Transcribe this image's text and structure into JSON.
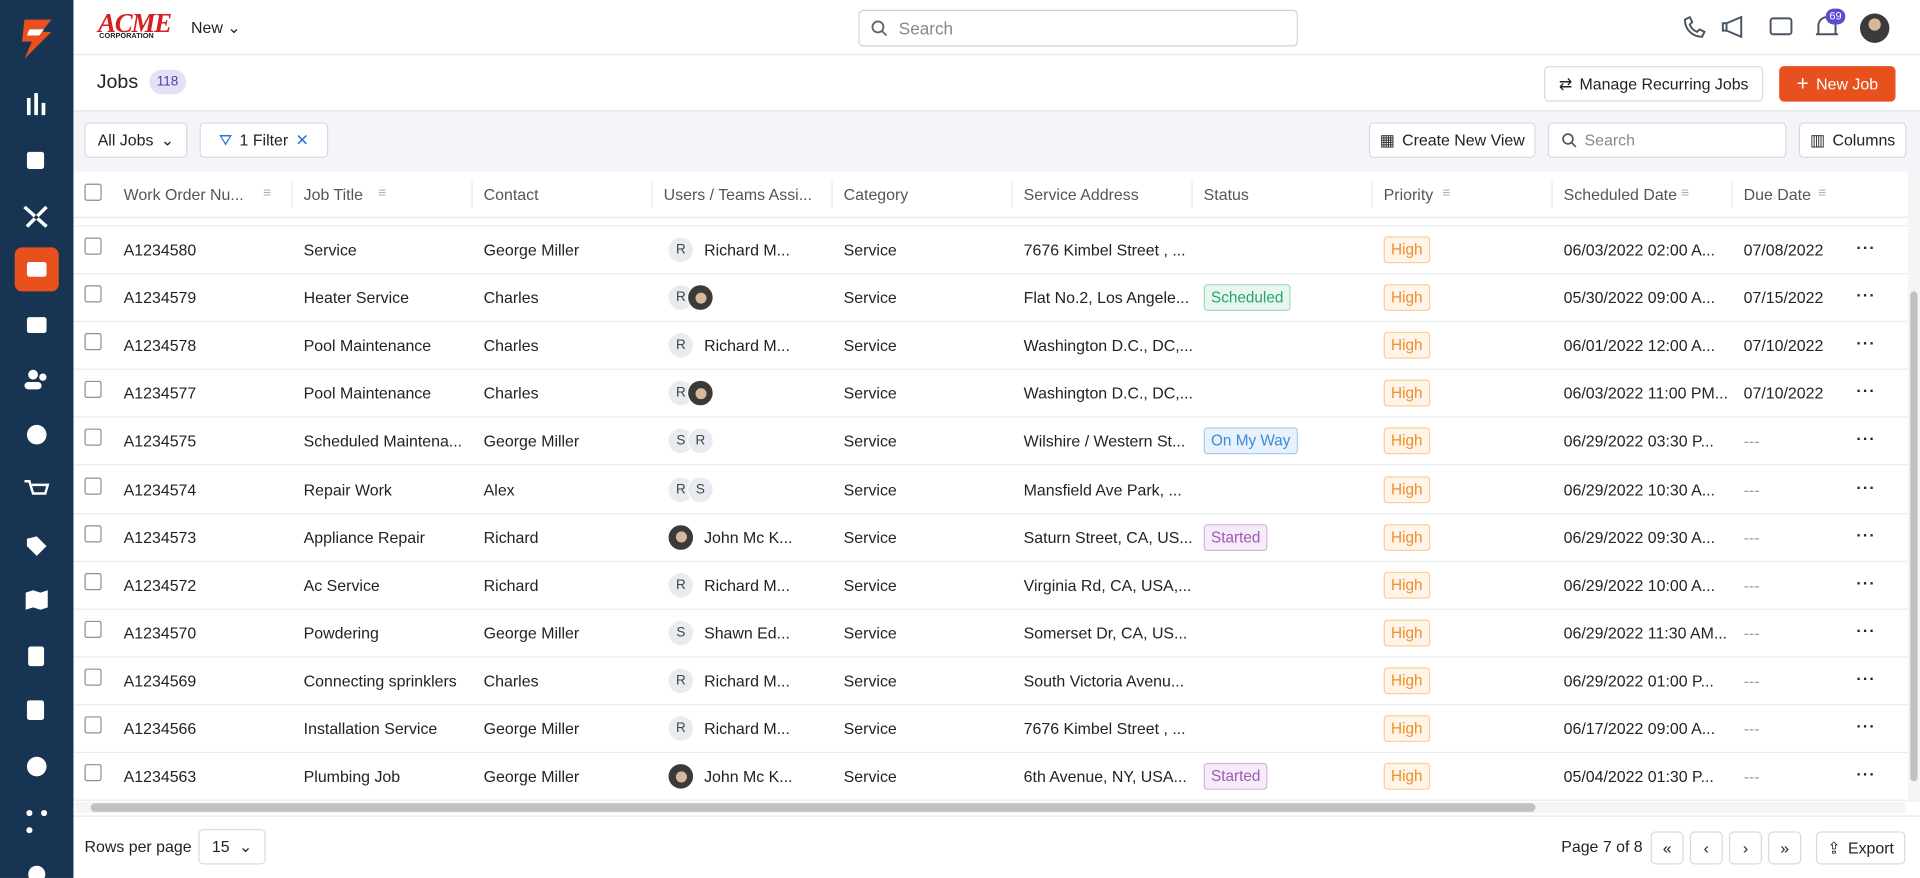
{
  "header": {
    "logo": "ACME",
    "logo_sub": "CORPORATION",
    "new_menu": "New",
    "search_placeholder": "Search",
    "notification_count": "69"
  },
  "page": {
    "title": "Jobs",
    "count": "118",
    "manage_button": "Manage Recurring Jobs",
    "new_button": "New Job"
  },
  "toolbar": {
    "view": "All Jobs",
    "filter": "1 Filter",
    "create_view": "Create New View",
    "search_placeholder": "Search",
    "columns": "Columns"
  },
  "table": {
    "columns": [
      "Work Order Nu...",
      "Job Title",
      "Contact",
      "Users / Teams Assi...",
      "Category",
      "Service Address",
      "Status",
      "Priority",
      "Scheduled Date",
      "Due Date"
    ],
    "rows": [
      {
        "id": "A1234580",
        "title": "Service",
        "contact": "George Miller",
        "initials": [
          "R"
        ],
        "assignee": "Richard M...",
        "category": "Service",
        "address": "7676 Kimbel Street , ...",
        "priority": "High",
        "scheduled": "06/03/2022 02:00 A...",
        "due": "07/08/2022"
      },
      {
        "id": "A1234579",
        "title": "Heater Service",
        "contact": "Charles",
        "initials": [
          "R"
        ],
        "photo": true,
        "category": "Service",
        "address": "Flat No.2, Los Angele...",
        "status": "Scheduled",
        "priority": "High",
        "scheduled": "05/30/2022 09:00 A...",
        "due": "07/15/2022"
      },
      {
        "id": "A1234578",
        "title": "Pool Maintenance",
        "contact": "Charles",
        "initials": [
          "R"
        ],
        "assignee": "Richard M...",
        "category": "Service",
        "address": "Washington D.C., DC,...",
        "priority": "High",
        "scheduled": "06/01/2022 12:00 A...",
        "due": "07/10/2022"
      },
      {
        "id": "A1234577",
        "title": "Pool Maintenance",
        "contact": "Charles",
        "initials": [
          "R"
        ],
        "photo": true,
        "category": "Service",
        "address": "Washington D.C., DC,...",
        "priority": "High",
        "scheduled": "06/03/2022 11:00 PM...",
        "due": "07/10/2022"
      },
      {
        "id": "A1234575",
        "title": "Scheduled Maintena...",
        "contact": "George Miller",
        "initials": [
          "S",
          "R"
        ],
        "category": "Service",
        "address": "Wilshire / Western St...",
        "status": "On My Way",
        "priority": "High",
        "scheduled": "06/29/2022 03:30 P...",
        "due": "---"
      },
      {
        "id": "A1234574",
        "title": "Repair Work",
        "contact": "Alex",
        "initials": [
          "R",
          "S"
        ],
        "category": "Service",
        "address": "Mansfield Ave Park, ...",
        "priority": "High",
        "scheduled": "06/29/2022 10:30 A...",
        "due": "---"
      },
      {
        "id": "A1234573",
        "title": "Appliance Repair",
        "contact": "Richard",
        "photo": true,
        "assignee": "John Mc K...",
        "category": "Service",
        "address": "Saturn Street, CA, US...",
        "status": "Started",
        "priority": "High",
        "scheduled": "06/29/2022 09:30 A...",
        "due": "---"
      },
      {
        "id": "A1234572",
        "title": "Ac Service",
        "contact": "Richard",
        "initials": [
          "R"
        ],
        "assignee": "Richard M...",
        "category": "Service",
        "address": "Virginia Rd, CA, USA,...",
        "priority": "High",
        "scheduled": "06/29/2022 10:00 A...",
        "due": "---"
      },
      {
        "id": "A1234570",
        "title": "Powdering",
        "contact": "George Miller",
        "initials": [
          "S"
        ],
        "assignee": "Shawn Ed...",
        "category": "Service",
        "address": "Somerset Dr, CA, US...",
        "priority": "High",
        "scheduled": "06/29/2022 11:30 AM...",
        "due": "---"
      },
      {
        "id": "A1234569",
        "title": "Connecting sprinklers",
        "contact": "Charles",
        "initials": [
          "R"
        ],
        "assignee": "Richard M...",
        "category": "Service",
        "address": "South Victoria Avenu...",
        "priority": "High",
        "scheduled": "06/29/2022 01:00 P...",
        "due": "---"
      },
      {
        "id": "A1234566",
        "title": "Installation Service",
        "contact": "George Miller",
        "initials": [
          "R"
        ],
        "assignee": "Richard M...",
        "category": "Service",
        "address": "7676 Kimbel Street , ...",
        "priority": "High",
        "scheduled": "06/17/2022 09:00 A...",
        "due": "---"
      },
      {
        "id": "A1234563",
        "title": "Plumbing Job",
        "contact": "George Miller",
        "photo": true,
        "assignee": "John Mc K...",
        "category": "Service",
        "address": "6th Avenue, NY, USA...",
        "status": "Started",
        "priority": "High",
        "scheduled": "05/04/2022 01:30 P...",
        "due": "---"
      }
    ]
  },
  "footer": {
    "rows_per_page_label": "Rows per page",
    "rows_per_page": "15",
    "page_info": "Page 7 of 8",
    "export": "Export"
  }
}
